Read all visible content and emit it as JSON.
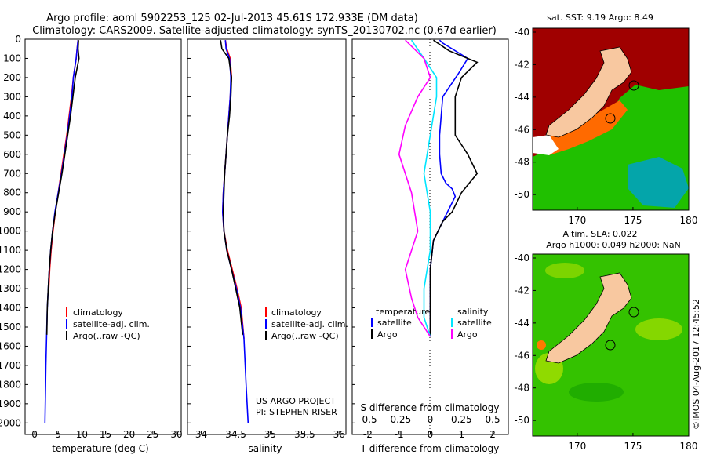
{
  "header": {
    "line1": "Argo profile: aoml 5902253_125 02-Jul-2013 45.61S 172.933E (DM data)",
    "line2": "Climatology: CARS2009. Satellite-adjusted climatology: synTS_20130702.nc (0.67d earlier)"
  },
  "colors": {
    "climatology": "#ff0000",
    "satellite": "#0000ff",
    "argo": "#000000",
    "salinity_satellite": "#00e5ff",
    "salinity_argo": "#ff00ff",
    "land": "#f8c8a0"
  },
  "depth_axis": {
    "ticks": [
      "0",
      "100",
      "200",
      "300",
      "400",
      "500",
      "600",
      "700",
      "800",
      "900",
      "1000",
      "1100",
      "1200",
      "1300",
      "1400",
      "1500",
      "1600",
      "1700",
      "1800",
      "1900",
      "2000"
    ]
  },
  "chart_data": [
    {
      "type": "line",
      "id": "temperature",
      "xlabel": "temperature (deg C)",
      "xlim": [
        -2,
        31
      ],
      "ylim": [
        0,
        2060
      ],
      "x_ticks": [
        "0",
        "5",
        "10",
        "15",
        "20",
        "25",
        "30"
      ],
      "legend": [
        "climatology",
        "satellite-adj. clim.",
        "Argo(..raw -QC)"
      ],
      "series": [
        {
          "name": "climatology",
          "x": [
            9.2,
            9.0,
            8.8,
            8.5,
            8.2,
            7.8,
            7.3,
            6.8,
            6.2,
            5.6,
            5.0,
            4.4,
            3.9,
            3.5,
            3.2,
            3.0
          ],
          "y": [
            5,
            50,
            100,
            150,
            200,
            300,
            400,
            500,
            600,
            700,
            800,
            900,
            1000,
            1100,
            1200,
            1300
          ]
        },
        {
          "name": "satellite-adj. clim.",
          "x": [
            9.2,
            9.0,
            8.8,
            8.5,
            8.2,
            7.9,
            7.4,
            6.9,
            6.3,
            5.7,
            5.0,
            4.3,
            3.8,
            3.4,
            3.1,
            2.9,
            2.7,
            2.6,
            2.5,
            2.4,
            2.3,
            2.2
          ],
          "y": [
            5,
            50,
            100,
            150,
            200,
            300,
            400,
            500,
            600,
            700,
            800,
            900,
            1000,
            1100,
            1200,
            1300,
            1400,
            1500,
            1600,
            1700,
            1850,
            2000
          ]
        },
        {
          "name": "Argo(..raw -QC)",
          "x": [
            9.3,
            9.2,
            9.4,
            9.0,
            8.6,
            8.1,
            7.6,
            7.0,
            6.4,
            5.8,
            5.1,
            4.4,
            3.8,
            3.4,
            3.1,
            2.9,
            2.7,
            2.6
          ],
          "y": [
            5,
            50,
            100,
            150,
            200,
            300,
            400,
            500,
            600,
            700,
            800,
            900,
            1000,
            1100,
            1200,
            1300,
            1400,
            1540
          ]
        }
      ]
    },
    {
      "type": "line",
      "id": "salinity",
      "xlabel": "salinity",
      "xlim": [
        33.8,
        36.1
      ],
      "ylim": [
        0,
        2060
      ],
      "x_ticks": [
        "34",
        "34.5",
        "35",
        "35.5",
        "36"
      ],
      "legend": [
        "climatology",
        "satellite-adj. clim.",
        "Argo(..raw -QC)"
      ],
      "series": [
        {
          "name": "climatology",
          "x": [
            34.35,
            34.37,
            34.42,
            34.44,
            34.42,
            34.4,
            34.38,
            34.36,
            34.34,
            34.32,
            34.31,
            34.33,
            34.38,
            34.45,
            34.52,
            34.58,
            34.62
          ],
          "y": [
            5,
            50,
            100,
            200,
            300,
            400,
            500,
            600,
            700,
            800,
            900,
            1000,
            1100,
            1200,
            1300,
            1400,
            1560
          ]
        },
        {
          "name": "satellite-adj. clim.",
          "x": [
            34.35,
            34.36,
            34.41,
            34.43,
            34.42,
            34.4,
            34.38,
            34.36,
            34.34,
            34.32,
            34.31,
            34.33,
            34.37,
            34.44,
            34.51,
            34.57,
            34.62,
            34.65,
            34.68
          ],
          "y": [
            5,
            50,
            100,
            200,
            300,
            400,
            500,
            600,
            700,
            800,
            900,
            1000,
            1100,
            1200,
            1300,
            1400,
            1560,
            1800,
            2000
          ]
        },
        {
          "name": "Argo(..raw -QC)",
          "x": [
            34.28,
            34.3,
            34.4,
            34.44,
            34.43,
            34.41,
            34.38,
            34.36,
            34.34,
            34.33,
            34.32,
            34.33,
            34.37,
            34.44,
            34.5,
            34.56,
            34.6
          ],
          "y": [
            5,
            50,
            100,
            200,
            300,
            400,
            500,
            600,
            700,
            800,
            900,
            1000,
            1100,
            1200,
            1300,
            1400,
            1540
          ]
        }
      ]
    },
    {
      "type": "line",
      "id": "difference",
      "xlabel": "T difference from climatology",
      "x2label": "S difference from climatology",
      "xlim": [
        -2.5,
        2.5
      ],
      "ylim": [
        0,
        2060
      ],
      "x_ticks": [
        "-2",
        "-1",
        "0",
        "1",
        "2"
      ],
      "x2_ticks": [
        "-0.5",
        "-0.25",
        "0",
        "0.25",
        "0.5"
      ],
      "legend_temperature_title": "temperature",
      "legend_salinity_title": "salinity",
      "legend_temperature": [
        "satellite",
        "Argo"
      ],
      "legend_salinity": [
        "satellite",
        "Argo"
      ],
      "series": [
        {
          "name": "T satellite",
          "x": [
            0.3,
            0.4,
            1.2,
            0.9,
            0.4,
            0.3,
            0.3,
            0.35,
            0.5,
            0.7,
            0.8,
            0.4,
            0.1,
            0.0,
            0.0,
            0.0,
            0.0
          ],
          "y": [
            5,
            20,
            100,
            180,
            300,
            500,
            600,
            700,
            750,
            780,
            820,
            950,
            1050,
            1200,
            1300,
            1400,
            1550
          ]
        },
        {
          "name": "T Argo",
          "x": [
            0.1,
            0.6,
            1.5,
            1.0,
            0.8,
            0.8,
            1.2,
            1.5,
            1.0,
            0.7,
            0.4,
            0.1,
            0.0,
            0.0,
            0.0
          ],
          "y": [
            5,
            60,
            120,
            200,
            300,
            500,
            600,
            700,
            800,
            900,
            950,
            1050,
            1200,
            1400,
            1550
          ]
        },
        {
          "name": "S satellite",
          "x": [
            -0.15,
            -0.05,
            0.05,
            0.05,
            0.0,
            -0.05,
            0.0,
            0.0,
            -0.05,
            -0.05,
            0.0
          ],
          "y": [
            5,
            100,
            200,
            300,
            500,
            700,
            900,
            1100,
            1300,
            1450,
            1550
          ]
        },
        {
          "name": "S Argo",
          "x": [
            -0.2,
            -0.05,
            0.0,
            -0.1,
            -0.2,
            -0.25,
            -0.15,
            -0.1,
            -0.2,
            -0.15,
            -0.1,
            0.0
          ],
          "y": [
            5,
            100,
            200,
            300,
            450,
            600,
            800,
            1000,
            1200,
            1350,
            1450,
            1550
          ]
        }
      ]
    }
  ],
  "sst_map": {
    "title": "sat. SST: 9.19  Argo: 8.49",
    "lat_ticks": [
      "-40",
      "-42",
      "-44",
      "-46",
      "-48",
      "-50"
    ],
    "lon_ticks": [
      "170",
      "175",
      "180"
    ]
  },
  "sla_map": {
    "title_line1": "Altim. SLA: 0.022",
    "title_line2": "Argo h1000: 0.049 h2000: NaN",
    "lat_ticks": [
      "-40",
      "-42",
      "-44",
      "-46",
      "-48",
      "-50"
    ],
    "lon_ticks": [
      "170",
      "175",
      "180"
    ]
  },
  "credits": {
    "project": "US ARGO PROJECT",
    "pi": "PI: STEPHEN RISER",
    "imos": "©IMOS 04-Aug-2017 12:45:52"
  }
}
